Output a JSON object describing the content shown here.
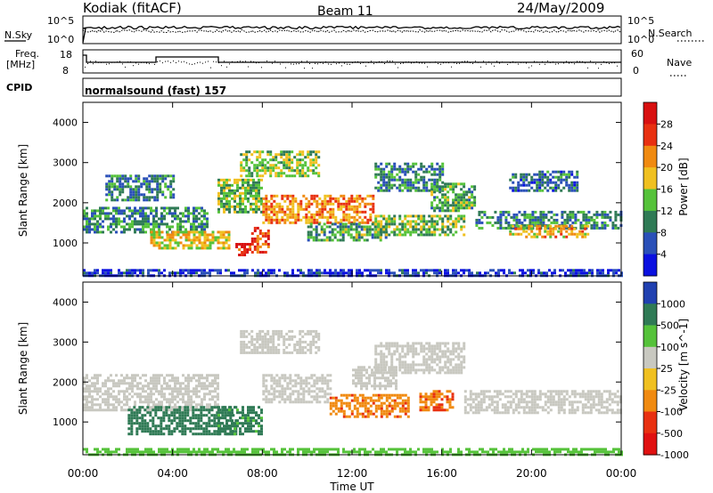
{
  "header": {
    "station": "Kodiak (fitACF)",
    "beam": "Beam 11",
    "date": "24/May/2009"
  },
  "strip_nsky": {
    "label": "N.Sky",
    "right_label": "N.Search",
    "left_ticks": [
      "10^5",
      "10^0"
    ],
    "right_ticks": [
      "10^5",
      "10^0"
    ]
  },
  "strip_freq": {
    "label_line1": "Freq.",
    "label_line2": "[MHz]",
    "right_label": "Nave",
    "left_ticks": [
      "18",
      "8"
    ],
    "right_ticks": [
      "60",
      "0"
    ]
  },
  "cpid": {
    "label": "CPID",
    "value": "normalsound (fast) 157"
  },
  "axes": {
    "xlabel": "Time UT",
    "x_ticks": [
      "00:00",
      "04:00",
      "08:00",
      "12:00",
      "16:00",
      "20:00",
      "00:00"
    ],
    "ylabel": "Slant Range [km]",
    "y_ticks": [
      "4000",
      "3000",
      "2000",
      "1000"
    ]
  },
  "chart_data": [
    {
      "type": "heatmap",
      "name": "power",
      "x_range_hours": [
        0,
        24
      ],
      "y_range_km": [
        180,
        4500
      ],
      "colorbar_label": "Power [dB]",
      "colorbar_ticks": [
        "28",
        "24",
        "20",
        "16",
        "12",
        "8",
        "4"
      ],
      "colorbar_colors": [
        "#0a10e0",
        "#2a50b8",
        "#2f7a55",
        "#55c23a",
        "#f0c020",
        "#f08a10",
        "#e83010",
        "#d81010"
      ],
      "regions": [
        {
          "t0": 0.0,
          "t1": 24.0,
          "r0": 180,
          "r1": 350,
          "v": 4
        },
        {
          "t0": 0.0,
          "t1": 5.5,
          "r0": 1300,
          "r1": 1900,
          "v": 10
        },
        {
          "t0": 1.0,
          "t1": 4.0,
          "r0": 2100,
          "r1": 2700,
          "v": 9
        },
        {
          "t0": 3.0,
          "t1": 6.5,
          "r0": 900,
          "r1": 1300,
          "v": 18
        },
        {
          "t0": 6.0,
          "t1": 8.0,
          "r0": 1800,
          "r1": 2600,
          "v": 14
        },
        {
          "t0": 6.8,
          "t1": 7.5,
          "r0": 700,
          "r1": 1000,
          "v": 28
        },
        {
          "t0": 7.5,
          "t1": 8.3,
          "r0": 750,
          "r1": 1400,
          "v": 27
        },
        {
          "t0": 7.0,
          "t1": 10.5,
          "r0": 2700,
          "r1": 3300,
          "v": 15
        },
        {
          "t0": 8.0,
          "t1": 13.0,
          "r0": 1500,
          "r1": 2200,
          "v": 22
        },
        {
          "t0": 10.0,
          "t1": 13.5,
          "r0": 1100,
          "r1": 1500,
          "v": 12
        },
        {
          "t0": 13.0,
          "t1": 17.0,
          "r0": 1200,
          "r1": 1700,
          "v": 14
        },
        {
          "t0": 13.0,
          "t1": 16.0,
          "r0": 2300,
          "r1": 3000,
          "v": 10
        },
        {
          "t0": 15.5,
          "t1": 17.5,
          "r0": 1800,
          "r1": 2500,
          "v": 12
        },
        {
          "t0": 17.5,
          "t1": 24.0,
          "r0": 1400,
          "r1": 1800,
          "v": 10
        },
        {
          "t0": 19.0,
          "t1": 22.5,
          "r0": 1150,
          "r1": 1450,
          "v": 20
        },
        {
          "t0": 19.0,
          "t1": 22.0,
          "r0": 2300,
          "r1": 2800,
          "v": 8
        }
      ]
    },
    {
      "type": "heatmap",
      "name": "velocity",
      "x_range_hours": [
        0,
        24
      ],
      "y_range_km": [
        180,
        4500
      ],
      "colorbar_label": "Velocity [m s^-1]",
      "colorbar_ticks": [
        "1000",
        "500",
        "100",
        "25",
        "-25",
        "-100",
        "-500",
        "-1000"
      ],
      "colorbar_colors": [
        "#2040b0",
        "#2f7a55",
        "#55c23a",
        "#c8c8c0",
        "#f0c020",
        "#f08a10",
        "#e83010",
        "#e01010"
      ],
      "regions": [
        {
          "t0": 0.0,
          "t1": 24.0,
          "r0": 180,
          "r1": 350,
          "v": 60
        },
        {
          "t0": 0.0,
          "t1": 6.0,
          "r0": 1300,
          "r1": 2200,
          "v": 0
        },
        {
          "t0": 2.0,
          "t1": 6.8,
          "r0": 700,
          "r1": 1400,
          "v": 300
        },
        {
          "t0": 6.0,
          "t1": 8.0,
          "r0": 700,
          "r1": 1400,
          "v": 150
        },
        {
          "t0": 7.0,
          "t1": 10.5,
          "r0": 2700,
          "r1": 3300,
          "v": 0
        },
        {
          "t0": 8.0,
          "t1": 11.0,
          "r0": 1500,
          "r1": 2200,
          "v": 0
        },
        {
          "t0": 11.0,
          "t1": 14.5,
          "r0": 1100,
          "r1": 1700,
          "v": -400
        },
        {
          "t0": 12.0,
          "t1": 14.0,
          "r0": 1800,
          "r1": 2400,
          "v": 0
        },
        {
          "t0": 15.0,
          "t1": 16.5,
          "r0": 1300,
          "r1": 1800,
          "v": -450
        },
        {
          "t0": 13.0,
          "t1": 17.0,
          "r0": 2200,
          "r1": 3000,
          "v": 0
        },
        {
          "t0": 17.0,
          "t1": 24.0,
          "r0": 1200,
          "r1": 1800,
          "v": 0
        }
      ]
    }
  ]
}
